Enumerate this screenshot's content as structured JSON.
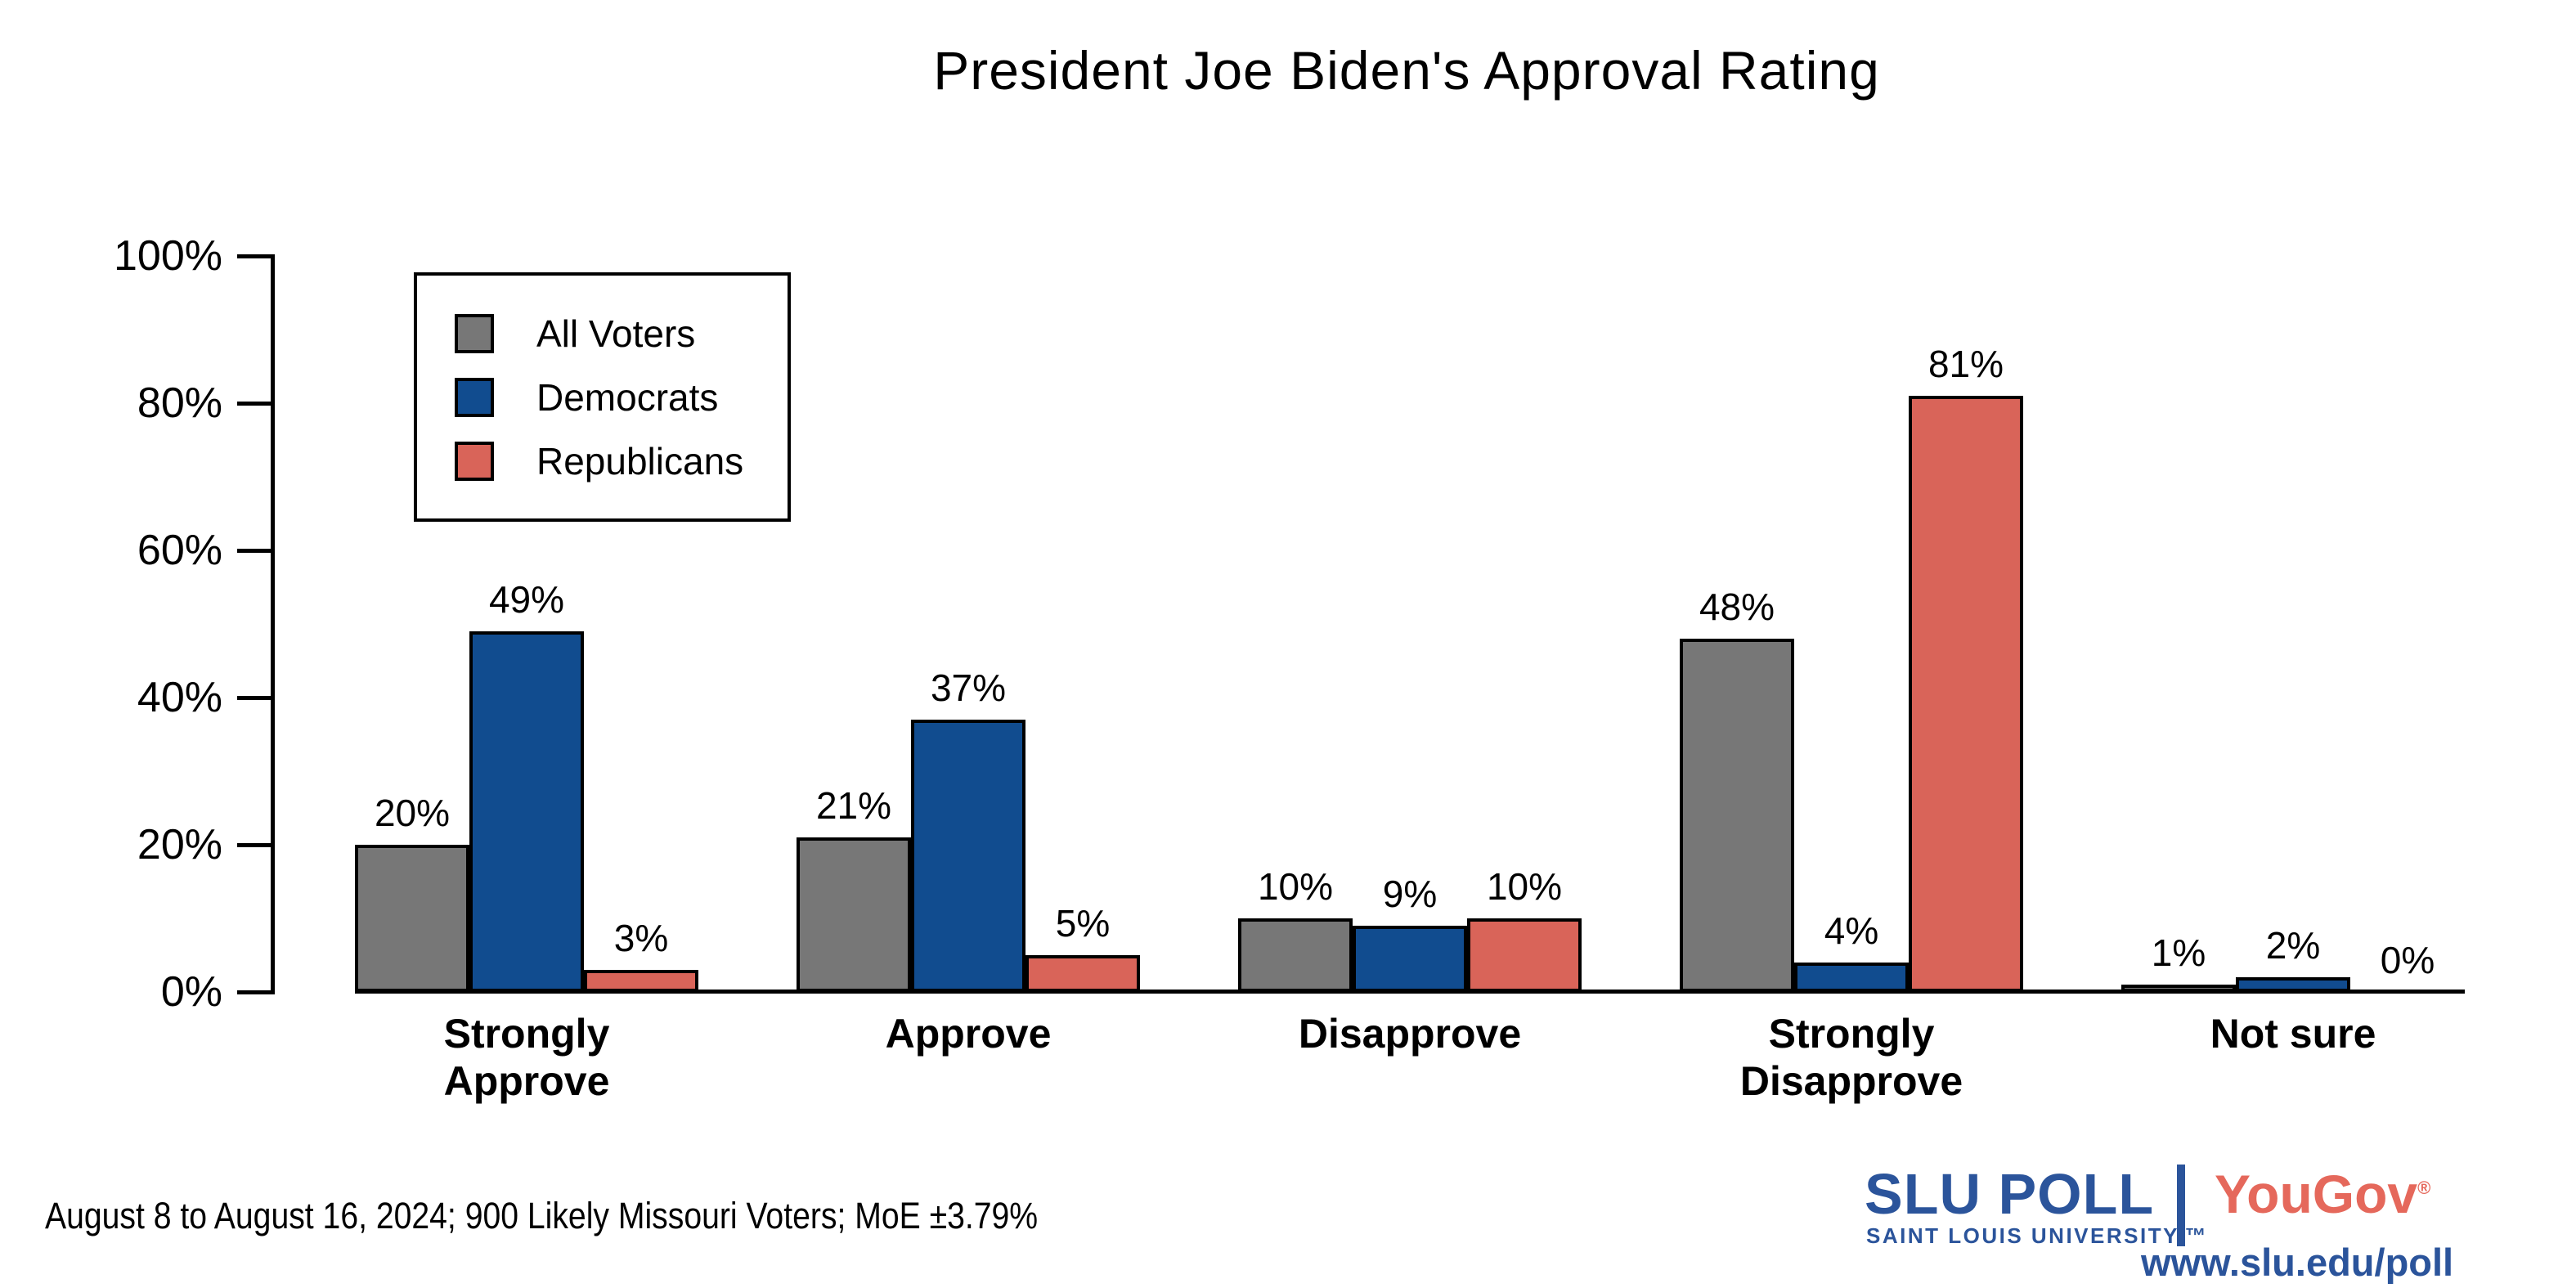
{
  "chart_data": {
    "type": "bar",
    "title": "President Joe Biden's Approval Rating",
    "categories": [
      "Strongly\nApprove",
      "Approve",
      "Disapprove",
      "Strongly\nDisapprove",
      "Not sure"
    ],
    "series": [
      {
        "name": "All Voters",
        "color": "#777777",
        "values": [
          20,
          21,
          10,
          48,
          1
        ]
      },
      {
        "name": "Democrats",
        "color": "#114C8F",
        "values": [
          49,
          37,
          9,
          4,
          2
        ]
      },
      {
        "name": "Republicans",
        "color": "#D96459",
        "values": [
          3,
          5,
          10,
          81,
          0
        ]
      }
    ],
    "xlabel": "",
    "ylabel": "",
    "ylim": [
      0,
      100
    ],
    "ytick_labels": [
      "0%",
      "20%",
      "40%",
      "60%",
      "80%",
      "100%"
    ],
    "ytick_values": [
      0,
      20,
      40,
      60,
      80,
      100
    ],
    "value_labels": [
      [
        "20%",
        "21%",
        "10%",
        "48%",
        "1%"
      ],
      [
        "49%",
        "37%",
        "9%",
        "4%",
        "2%"
      ],
      [
        "3%",
        "5%",
        "10%",
        "81%",
        "0%"
      ]
    ],
    "grid": false,
    "legend_position": "upper-left"
  },
  "footer": {
    "text": "August 8 to August 16, 2024; 900 Likely Missouri Voters; MoE ±3.79%"
  },
  "branding": {
    "slu_poll": "SLU POLL",
    "slu_sub": "SAINT LOUIS UNIVERSITY.™",
    "yougov": "YouGov",
    "yougov_reg": "®",
    "url": "www.slu.edu/poll",
    "slu_blue": "#2B549B",
    "yougov_red": "#E5685B"
  }
}
